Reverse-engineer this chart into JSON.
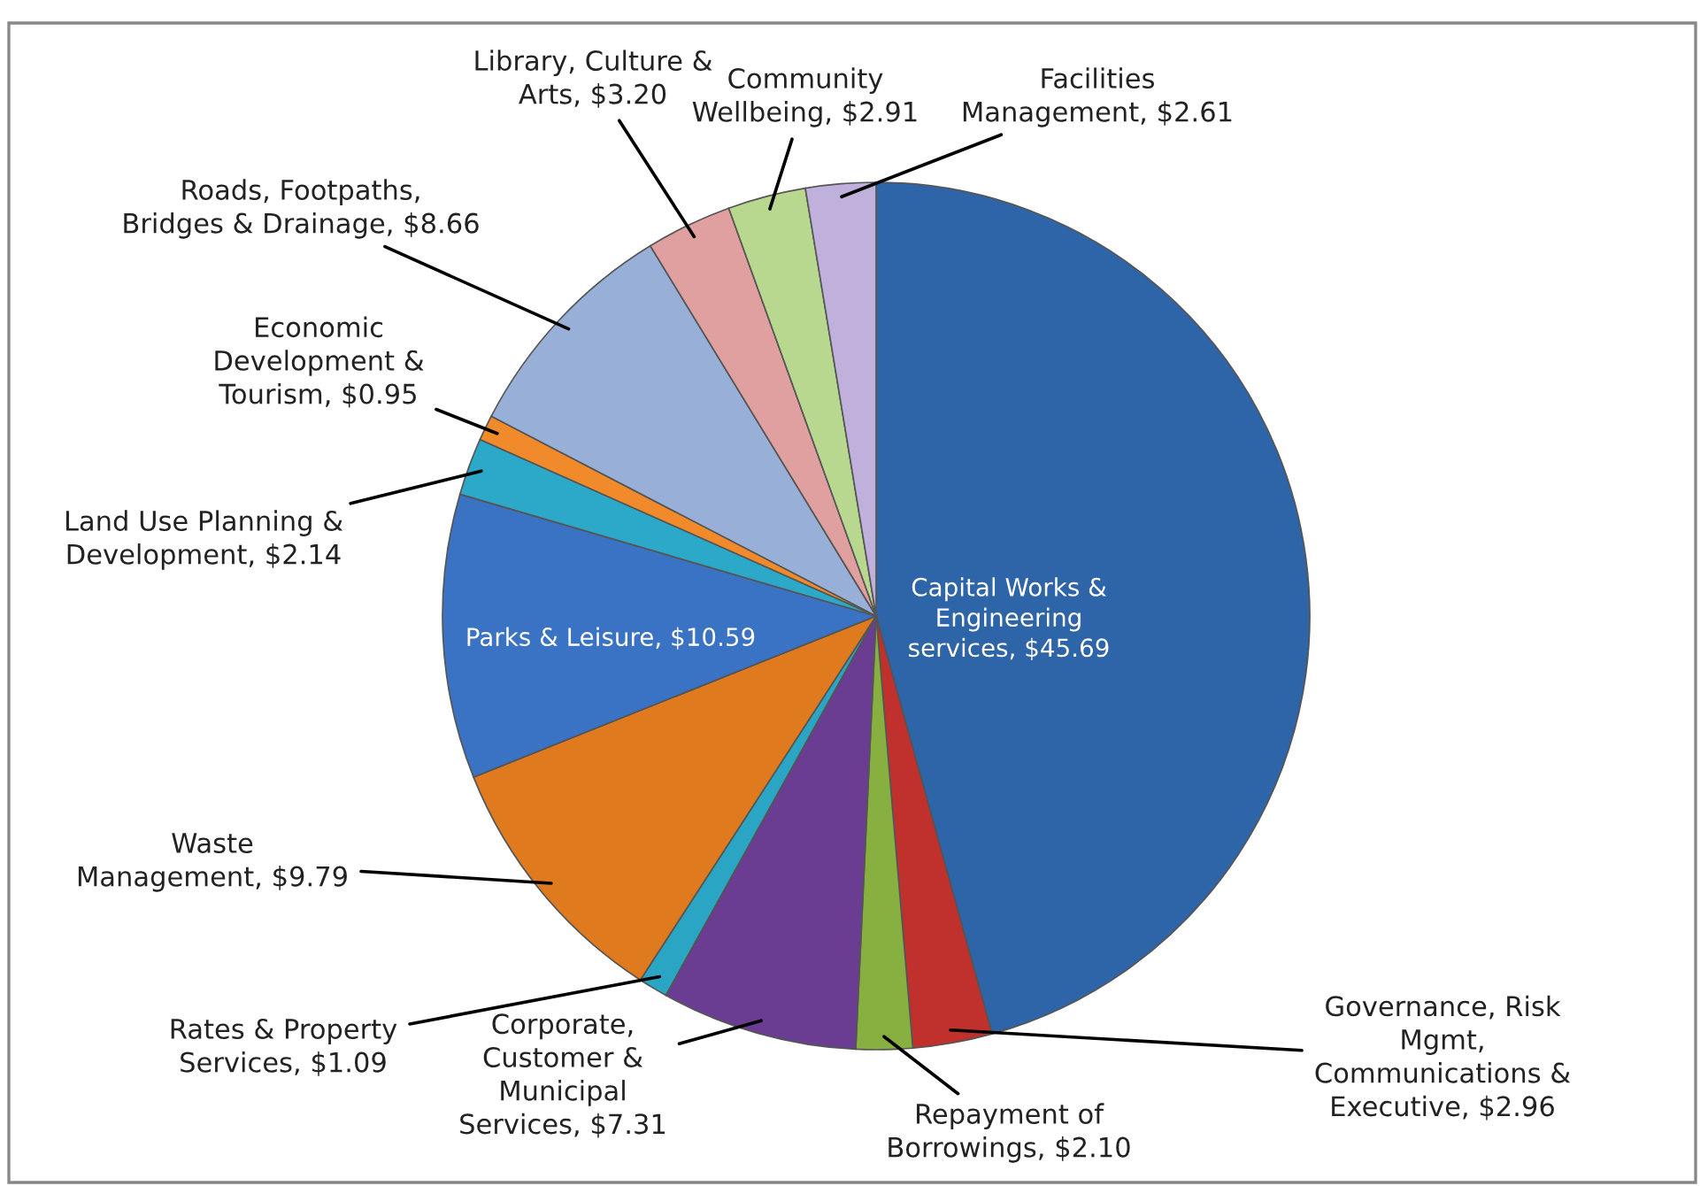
{
  "chart_data": {
    "type": "pie",
    "categories": [
      "Capital Works &\nEngineering\nservices",
      "Governance, Risk\nMgmt,\nCommunications &\nExecutive",
      "Repayment of\nBorrowings",
      "Corporate,\nCustomer &\nMunicipal\nServices",
      "Rates & Property\nServices",
      "Waste\nManagement",
      "Parks & Leisure",
      "Land Use Planning &\nDevelopment",
      "Economic\nDevelopment &\nTourism",
      "Roads, Footpaths,\nBridges & Drainage",
      "Library, Culture &\nArts",
      "Community\nWellbeing",
      "Facilities\nManagement"
    ],
    "values": [
      45.69,
      2.96,
      2.1,
      7.31,
      1.09,
      9.79,
      10.59,
      2.14,
      0.95,
      8.66,
      3.2,
      2.91,
      2.61
    ],
    "value_labels": [
      "$45.69",
      "$2.96",
      "$2.10",
      "$7.31",
      "$1.09",
      "$9.79",
      "$10.59",
      "$2.14",
      "$0.95",
      "$8.66",
      "$3.20",
      "$2.91",
      "$2.61"
    ],
    "colors": [
      "#2e64a8",
      "#c0302c",
      "#88b040",
      "#6a3d92",
      "#2aa5c4",
      "#e07a1e",
      "#3a72c4",
      "#2ca8c8",
      "#f08a2a",
      "#98b0d8",
      "#e0a0a0",
      "#b8d890",
      "#c0b0dc"
    ],
    "legend": false
  }
}
